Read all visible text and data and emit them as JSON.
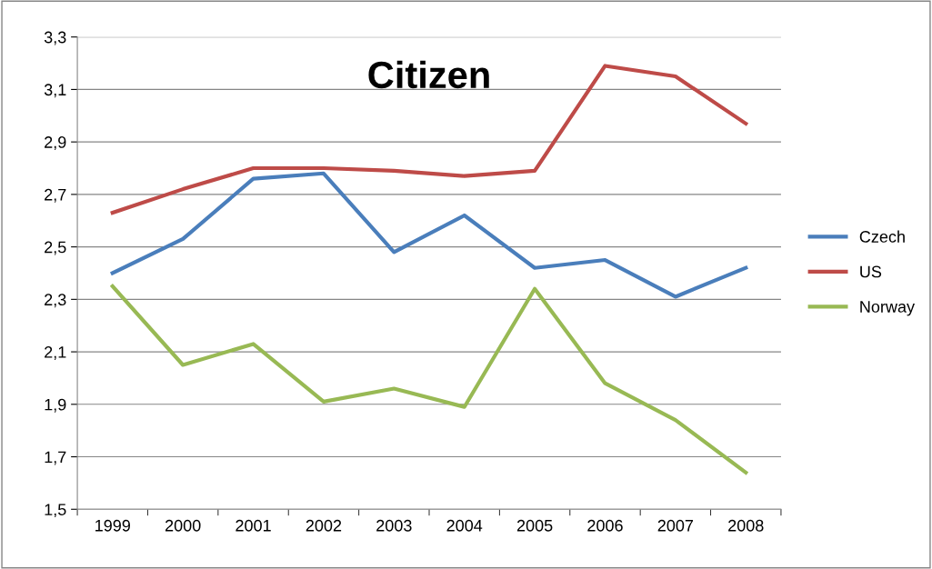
{
  "chart_data": {
    "type": "line",
    "title": "Citizen",
    "categories": [
      "1999",
      "2000",
      "2001",
      "2002",
      "2003",
      "2004",
      "2005",
      "2006",
      "2007",
      "2008"
    ],
    "series": [
      {
        "name": "Czech",
        "color": "#4a7ebb",
        "values": [
          2.4,
          2.53,
          2.76,
          2.78,
          2.48,
          2.62,
          2.42,
          2.45,
          2.31,
          2.42
        ]
      },
      {
        "name": "US",
        "color": "#be4b48",
        "values": [
          2.63,
          2.72,
          2.8,
          2.8,
          2.79,
          2.77,
          2.79,
          3.19,
          3.15,
          2.97
        ]
      },
      {
        "name": "Norway",
        "color": "#98b954",
        "values": [
          2.35,
          2.05,
          2.13,
          1.91,
          1.96,
          1.89,
          2.34,
          1.98,
          1.84,
          1.64
        ]
      }
    ],
    "ylim": [
      1.5,
      3.3
    ],
    "yticks": [
      {
        "value": 1.5,
        "label": "1,5"
      },
      {
        "value": 1.7,
        "label": "1,7"
      },
      {
        "value": 1.9,
        "label": "1,9"
      },
      {
        "value": 2.1,
        "label": "2,1"
      },
      {
        "value": 2.3,
        "label": "2,3"
      },
      {
        "value": 2.5,
        "label": "2,5"
      },
      {
        "value": 2.7,
        "label": "2,7"
      },
      {
        "value": 2.9,
        "label": "2,9"
      },
      {
        "value": 3.1,
        "label": "3,1"
      },
      {
        "value": 3.3,
        "label": "3,3"
      }
    ],
    "grid": "y",
    "legend": "right",
    "marker": "none",
    "line_style": "solid"
  }
}
